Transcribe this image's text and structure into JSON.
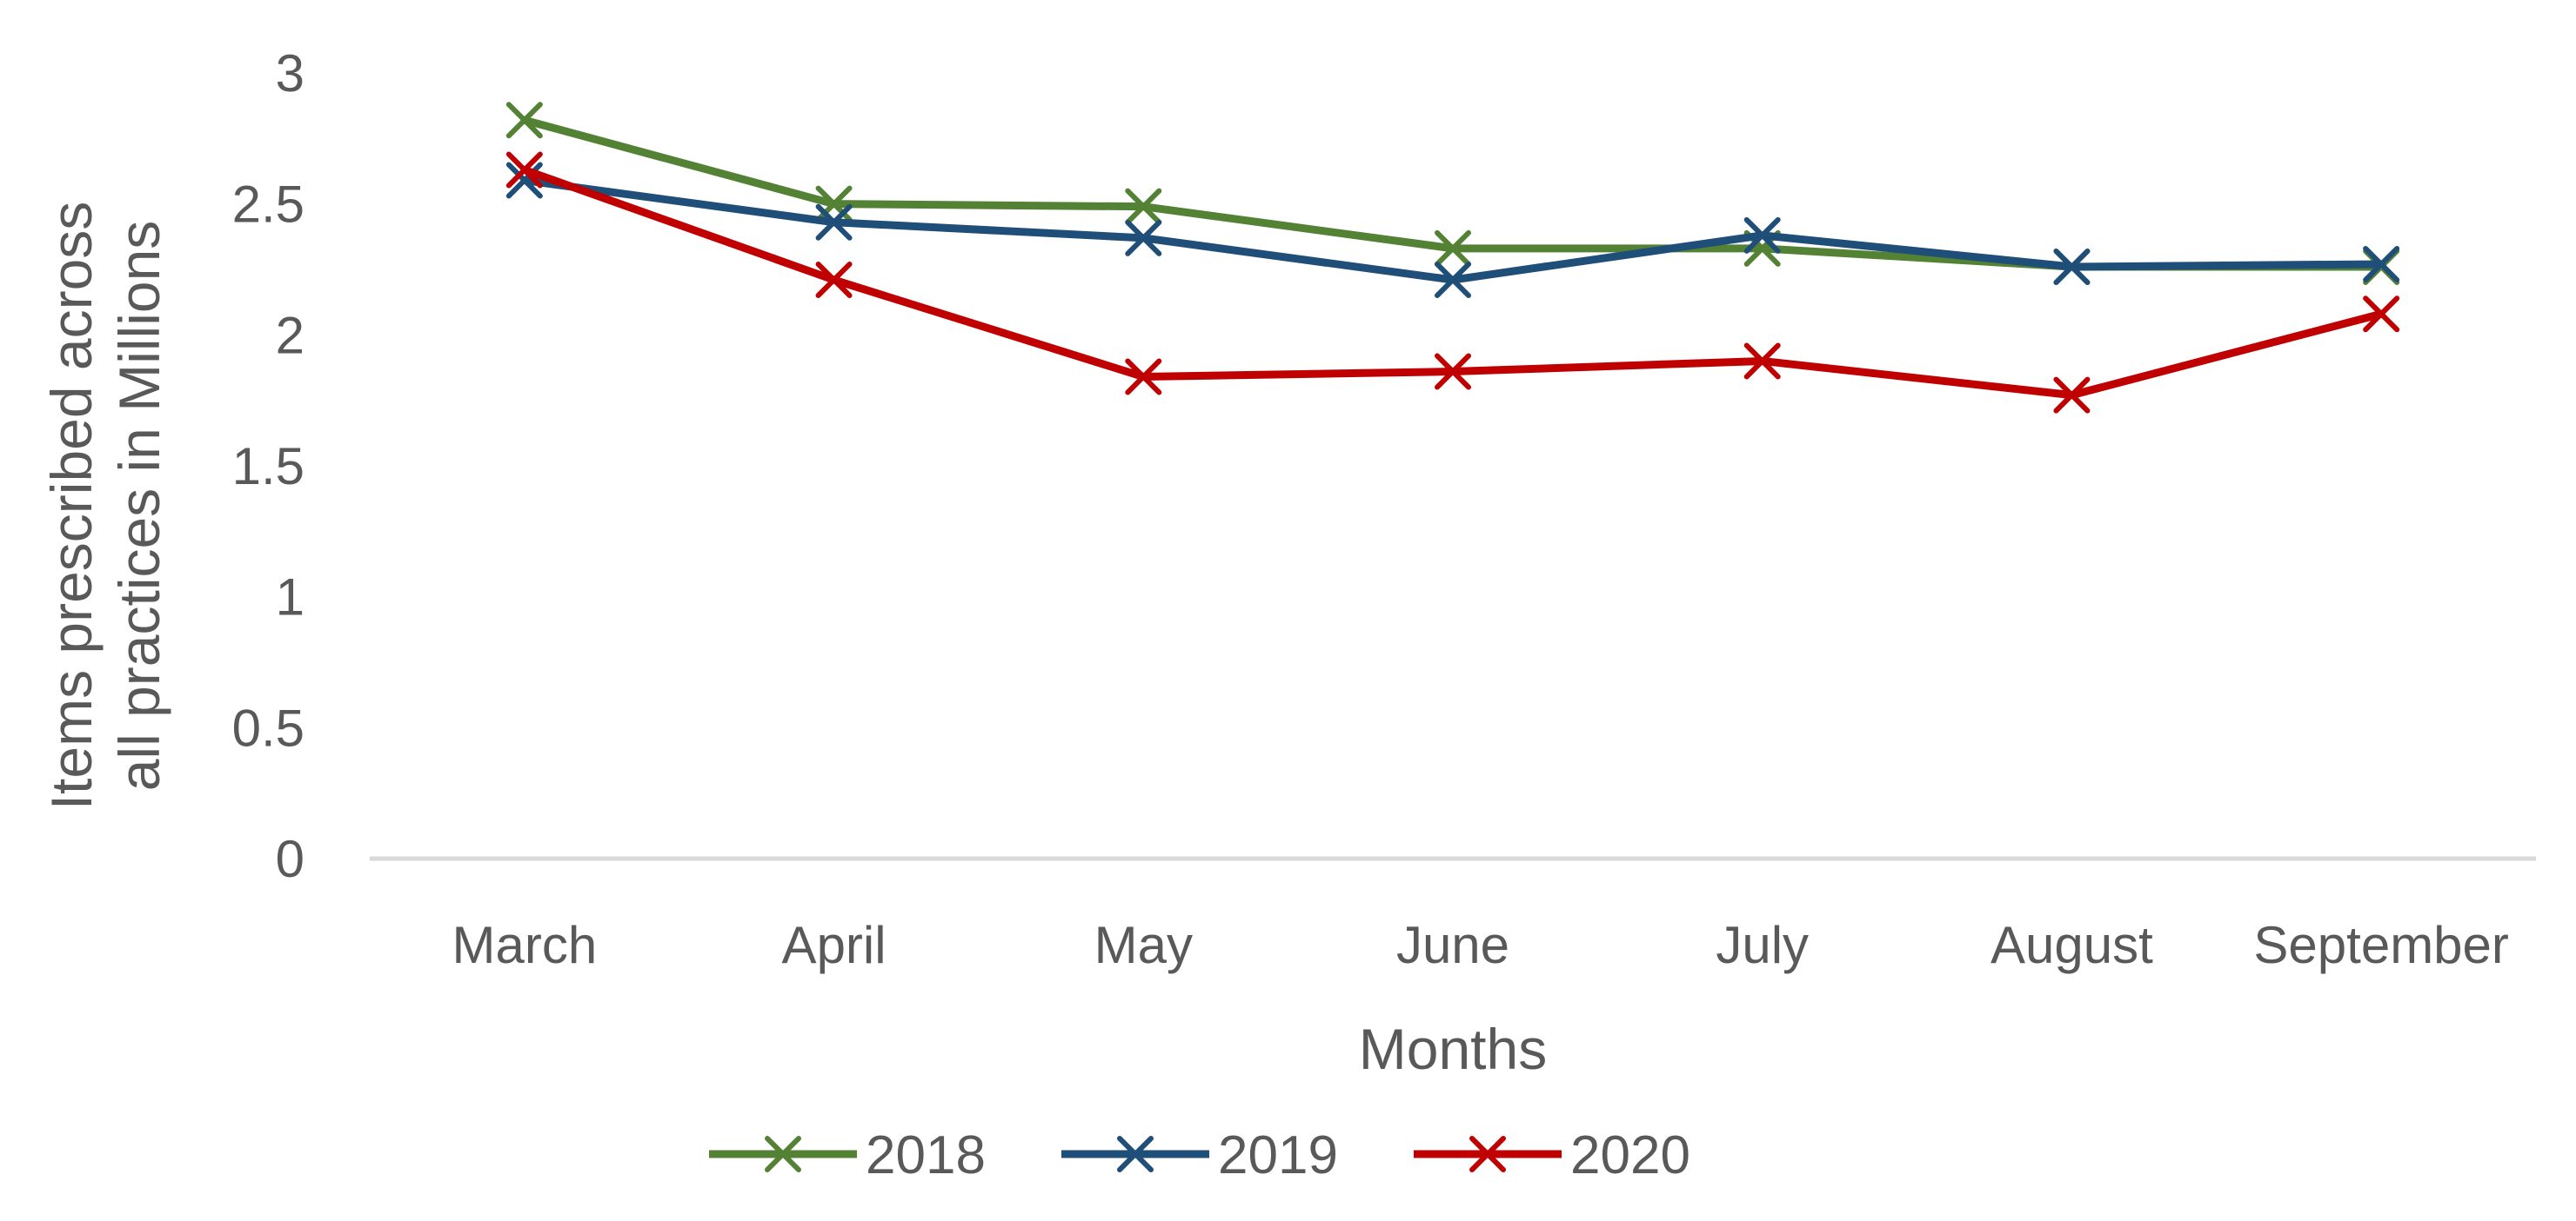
{
  "chart_data": {
    "type": "line",
    "title": "",
    "xlabel": "Months",
    "ylabel": "Items prescribed across all practices in  Millions",
    "categories": [
      "March",
      "April",
      "May",
      "June",
      "July",
      "August",
      "September"
    ],
    "ylim": [
      0,
      3
    ],
    "yticks": [
      "0",
      "0.5",
      "1",
      "1.5",
      "2",
      "2.5",
      "3"
    ],
    "grid": false,
    "legend_position": "bottom",
    "marker": "x",
    "series": [
      {
        "name": "2018",
        "color": "#548235",
        "values": [
          2.82,
          2.5,
          2.49,
          2.33,
          2.33,
          2.26,
          2.26
        ]
      },
      {
        "name": "2019",
        "color": "#1F4E79",
        "values": [
          2.59,
          2.43,
          2.37,
          2.21,
          2.38,
          2.26,
          2.27
        ]
      },
      {
        "name": "2020",
        "color": "#C00000",
        "values": [
          2.63,
          2.21,
          1.84,
          1.86,
          1.9,
          1.77,
          2.08
        ]
      }
    ]
  }
}
